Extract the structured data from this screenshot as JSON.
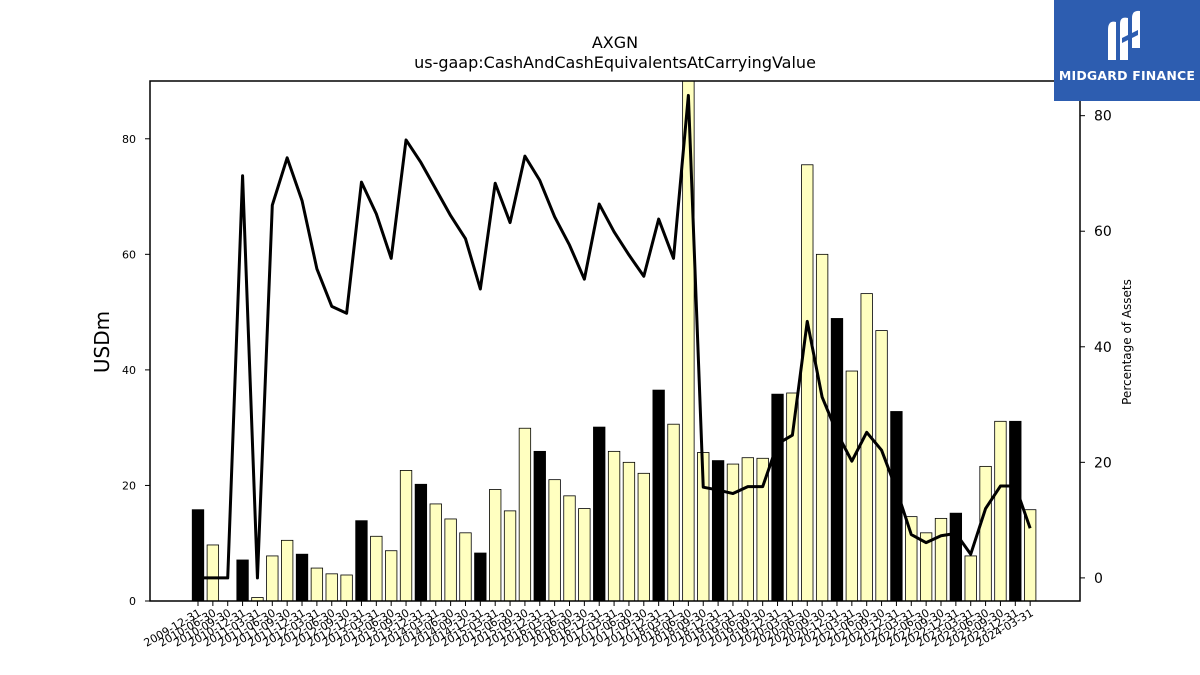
{
  "logo": {
    "text": "MIDGARD FINANCE",
    "icon": "midgard-m-icon",
    "background": "#2d5db0"
  },
  "colors": {
    "highlight_bar": "#000000",
    "bar": "#ffffc0",
    "line": "#000000"
  },
  "chart_data": {
    "type": "bar",
    "title": "AXGN",
    "subtitle": "us-gaap:CashAndCashEquivalentsAtCarryingValue",
    "ylabel": "USDm",
    "y2label": "Percentage of Assets",
    "ylim": [
      0,
      90
    ],
    "y2lim": [
      -4,
      86
    ],
    "yticks": [
      0,
      20,
      40,
      60,
      80
    ],
    "y2ticks": [
      0,
      20,
      40,
      60,
      80
    ],
    "categories": [
      "2009-12-31",
      "2010-06-30",
      "2010-09-30",
      "2010-12-31",
      "2011-03-31",
      "2011-06-30",
      "2011-09-30",
      "2011-12-31",
      "2012-03-31",
      "2012-06-30",
      "2012-09-30",
      "2012-12-31",
      "2013-03-31",
      "2013-06-30",
      "2013-09-30",
      "2013-12-31",
      "2014-03-31",
      "2014-06-30",
      "2014-09-30",
      "2014-12-31",
      "2015-03-31",
      "2015-06-30",
      "2015-09-30",
      "2015-12-31",
      "2016-03-31",
      "2016-06-30",
      "2016-09-30",
      "2016-12-31",
      "2017-03-31",
      "2017-06-30",
      "2017-09-30",
      "2017-12-31",
      "2018-03-31",
      "2018-06-30",
      "2018-09-30",
      "2018-12-31",
      "2019-03-31",
      "2019-06-30",
      "2019-09-30",
      "2019-12-31",
      "2020-03-31",
      "2020-06-30",
      "2020-09-30",
      "2020-12-31",
      "2021-03-31",
      "2021-06-30",
      "2021-09-30",
      "2021-12-31",
      "2022-03-31",
      "2022-06-30",
      "2022-09-30",
      "2022-12-31",
      "2023-03-31",
      "2023-06-30",
      "2023-09-30",
      "2023-12-31",
      "2024-03-31"
    ],
    "year_end": [
      true,
      false,
      false,
      true,
      false,
      false,
      false,
      true,
      false,
      false,
      false,
      true,
      false,
      false,
      false,
      true,
      false,
      false,
      false,
      true,
      false,
      false,
      false,
      true,
      false,
      false,
      false,
      true,
      false,
      false,
      false,
      true,
      false,
      false,
      false,
      true,
      false,
      false,
      false,
      true,
      false,
      false,
      false,
      true,
      false,
      false,
      false,
      true,
      false,
      false,
      false,
      true,
      false,
      false,
      false,
      true,
      false
    ],
    "series": [
      {
        "name": "USDm",
        "type": "bar",
        "values": [
          15.8,
          9.7,
          0,
          7.1,
          0.6,
          7.8,
          10.5,
          8.1,
          5.7,
          4.7,
          4.5,
          13.9,
          11.2,
          8.7,
          22.6,
          20.2,
          16.8,
          14.2,
          11.8,
          8.3,
          19.3,
          15.6,
          29.9,
          25.9,
          21.0,
          18.2,
          16.0,
          30.1,
          25.9,
          24.0,
          22.1,
          36.5,
          30.6,
          90.0,
          25.7,
          24.3,
          23.7,
          24.8,
          24.7,
          35.8,
          36.0,
          75.5,
          60.0,
          48.9,
          39.8,
          53.2,
          46.8,
          32.8,
          14.6,
          11.8,
          14.3,
          15.2,
          7.8,
          23.3,
          31.1,
          31.1,
          15.8
        ]
      },
      {
        "name": "Percentage of Assets",
        "type": "line",
        "axis": "right",
        "values": [
          0,
          0,
          0,
          69.6,
          0,
          64.5,
          72.7,
          65.3,
          53.5,
          47.0,
          45.8,
          68.5,
          63.0,
          55.3,
          75.8,
          71.9,
          67.3,
          62.7,
          58.7,
          50.0,
          68.3,
          61.5,
          73.0,
          68.8,
          62.5,
          57.6,
          51.7,
          64.7,
          59.9,
          55.9,
          52.2,
          62.1,
          55.3,
          83.5,
          15.7,
          15.2,
          14.6,
          15.8,
          15.8,
          23.2,
          24.7,
          44.4,
          31.3,
          25.1,
          20.2,
          25.2,
          22.1,
          15.3,
          7.5,
          6.1,
          7.3,
          7.7,
          4.1,
          12.0,
          15.9,
          15.9,
          8.6
        ]
      }
    ]
  }
}
